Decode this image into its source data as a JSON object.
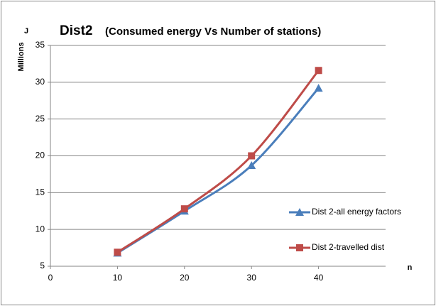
{
  "chart_data": {
    "type": "line",
    "title": "Dist2",
    "subtitle": "(Consumed energy Vs Number of stations)",
    "y_label_unit": "J",
    "y_label": "Millions",
    "x_label": "n",
    "x": [
      10,
      20,
      30,
      40
    ],
    "series": [
      {
        "name": "Dist 2-all energy factors",
        "color": "#4a7ebb",
        "marker": "triangle",
        "values": [
          6.8,
          12.5,
          18.7,
          29.2
        ]
      },
      {
        "name": "Dist 2-travelled dist",
        "color": "#be4b48",
        "marker": "square",
        "values": [
          6.9,
          12.8,
          20.0,
          31.6
        ]
      }
    ],
    "xlim": [
      0,
      50
    ],
    "xticks": [
      0,
      10,
      20,
      30,
      40
    ],
    "ylim": [
      5,
      35
    ],
    "yticks": [
      5,
      10,
      15,
      20,
      25,
      30,
      35
    ],
    "grid": true,
    "legend": "right"
  }
}
